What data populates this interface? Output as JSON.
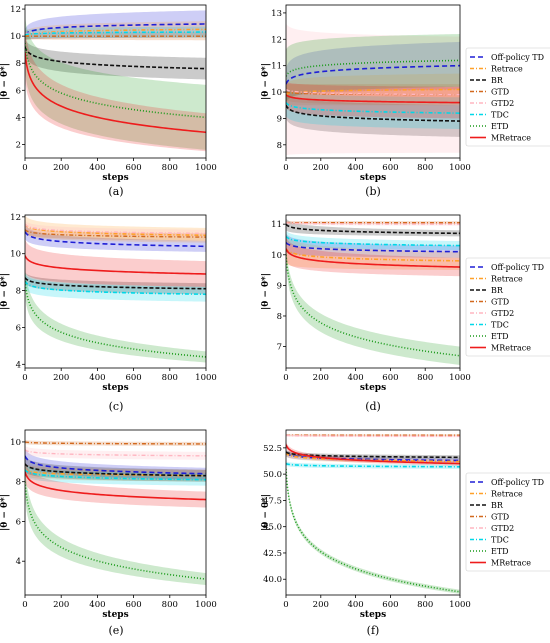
{
  "series_styles": [
    {
      "name": "Off-policy TD",
      "color": "#1f1fd6",
      "dash": "5,3",
      "width": 1.6,
      "marker": "none"
    },
    {
      "name": "Retrace",
      "color": "#ffa028",
      "dash": "4,2,1,2",
      "width": 1.6,
      "marker": "x"
    },
    {
      "name": "BR",
      "color": "#111111",
      "dash": "4,2",
      "width": 1.6,
      "marker": "dot"
    },
    {
      "name": "GTD",
      "color": "#d2691e",
      "dash": "4,2,1,2",
      "width": 1.4,
      "marker": "none"
    },
    {
      "name": "GTD2",
      "color": "#ffb6c1",
      "dash": "4,2,1,2",
      "width": 1.4,
      "marker": "dot"
    },
    {
      "name": "TDC",
      "color": "#00d8e8",
      "dash": "4,2,1,2",
      "width": 1.6,
      "marker": "none"
    },
    {
      "name": "ETD",
      "color": "#1a9a1a",
      "dash": "1,2",
      "width": 1.6,
      "marker": "none"
    },
    {
      "name": "MRetrace",
      "color": "#ee1c1c",
      "dash": "",
      "width": 1.6,
      "marker": "none"
    }
  ],
  "chart_data": [
    {
      "type": "line",
      "caption": "(a)",
      "xlabel": "steps",
      "ylabel": "|θ − θ*|",
      "xlim": [
        0,
        1000
      ],
      "ylim": [
        1,
        12.3
      ],
      "xticks": [
        0,
        200,
        400,
        600,
        800,
        1000
      ],
      "yticks": [
        2,
        4,
        6,
        8,
        10,
        12
      ],
      "legend": null,
      "series": [
        {
          "name": "Off-policy TD",
          "start": 10.1,
          "end": 10.9,
          "band_start": 0.4,
          "band_end": 1.0
        },
        {
          "name": "Retrace",
          "start": 10.0,
          "end": 10.5,
          "band_start": 0.3,
          "band_end": 0.6
        },
        {
          "name": "BR",
          "start": 9.2,
          "end": 7.6,
          "band_start": 0.6,
          "band_end": 0.8
        },
        {
          "name": "GTD",
          "start": 10.0,
          "end": 10.0,
          "band_start": 0.2,
          "band_end": 0.3
        },
        {
          "name": "GTD2",
          "start": 10.2,
          "end": 10.3,
          "band_start": 0.2,
          "band_end": 0.3
        },
        {
          "name": "TDC",
          "start": 10.1,
          "end": 10.3,
          "band_start": 0.3,
          "band_end": 0.4
        },
        {
          "name": "ETD",
          "start": 9.5,
          "end": 4.0,
          "band_start": 2.0,
          "band_end": 2.4
        },
        {
          "name": "MRetrace",
          "start": 8.8,
          "end": 2.9,
          "band_start": 2.0,
          "band_end": 1.4
        }
      ]
    },
    {
      "type": "line",
      "caption": "(b)",
      "xlabel": "steps",
      "ylabel": "|θ − θ*|",
      "xlim": [
        0,
        1000
      ],
      "ylim": [
        7.5,
        13.3
      ],
      "xticks": [
        0,
        200,
        400,
        600,
        800,
        1000
      ],
      "yticks": [
        8,
        9,
        10,
        11,
        12,
        13
      ],
      "legend": "right",
      "series": [
        {
          "name": "Off-policy TD",
          "start": 10.3,
          "end": 11.0,
          "band_start": 0.6,
          "band_end": 0.9
        },
        {
          "name": "Retrace",
          "start": 9.9,
          "end": 10.1,
          "band_start": 0.4,
          "band_end": 0.6
        },
        {
          "name": "BR",
          "start": 9.5,
          "end": 8.9,
          "band_start": 0.5,
          "band_end": 0.6
        },
        {
          "name": "GTD",
          "start": 10.0,
          "end": 9.9,
          "band_start": 0.3,
          "band_end": 0.4
        },
        {
          "name": "GTD2",
          "start": 10.1,
          "end": 9.9,
          "band_start": 2.5,
          "band_end": 2.2
        },
        {
          "name": "TDC",
          "start": 9.6,
          "end": 9.2,
          "band_start": 0.5,
          "band_end": 0.6
        },
        {
          "name": "ETD",
          "start": 10.6,
          "end": 11.2,
          "band_start": 1.0,
          "band_end": 1.0
        },
        {
          "name": "MRetrace",
          "start": 9.9,
          "end": 9.6,
          "band_start": 0.5,
          "band_end": 0.6
        }
      ]
    },
    {
      "type": "line",
      "caption": "(c)",
      "xlabel": "steps",
      "ylabel": "|θ − θ*|",
      "xlim": [
        0,
        1000
      ],
      "ylim": [
        3.8,
        12.1
      ],
      "xticks": [
        0,
        200,
        400,
        600,
        800,
        1000
      ],
      "yticks": [
        4,
        6,
        8,
        10,
        12
      ],
      "legend": null,
      "series": [
        {
          "name": "Off-policy TD",
          "start": 11.2,
          "end": 10.4,
          "band_start": 0.4,
          "band_end": 0.3
        },
        {
          "name": "Retrace",
          "start": 11.6,
          "end": 11.0,
          "band_start": 0.5,
          "band_end": 0.4
        },
        {
          "name": "BR",
          "start": 8.7,
          "end": 8.1,
          "band_start": 0.3,
          "band_end": 0.3
        },
        {
          "name": "GTD",
          "start": 11.3,
          "end": 10.9,
          "band_start": 0.2,
          "band_end": 0.2
        },
        {
          "name": "GTD2",
          "start": 11.6,
          "end": 11.1,
          "band_start": 0.2,
          "band_end": 0.2
        },
        {
          "name": "TDC",
          "start": 8.5,
          "end": 7.8,
          "band_start": 0.4,
          "band_end": 0.4
        },
        {
          "name": "ETD",
          "start": 8.5,
          "end": 4.4,
          "band_start": 0.8,
          "band_end": 0.3
        },
        {
          "name": "MRetrace",
          "start": 9.9,
          "end": 8.9,
          "band_start": 0.9,
          "band_end": 0.7
        }
      ]
    },
    {
      "type": "line",
      "caption": "(d)",
      "xlabel": "steps",
      "ylabel": "|θ − θ*|",
      "xlim": [
        0,
        1000
      ],
      "ylim": [
        6.3,
        11.3
      ],
      "xticks": [
        0,
        200,
        400,
        600,
        800,
        1000
      ],
      "yticks": [
        7,
        8,
        9,
        10,
        11
      ],
      "legend": "right",
      "series": [
        {
          "name": "Off-policy TD",
          "start": 10.4,
          "end": 10.1,
          "band_start": 0.3,
          "band_end": 0.2
        },
        {
          "name": "Retrace",
          "start": 10.2,
          "end": 9.8,
          "band_start": 0.5,
          "band_end": 0.3
        },
        {
          "name": "BR",
          "start": 11.0,
          "end": 10.7,
          "band_start": 0.2,
          "band_end": 0.1
        },
        {
          "name": "GTD",
          "start": 11.05,
          "end": 11.05,
          "band_start": 0.05,
          "band_end": 0.05
        },
        {
          "name": "GTD2",
          "start": 11.05,
          "end": 11.0,
          "band_start": 0.05,
          "band_end": 0.05
        },
        {
          "name": "TDC",
          "start": 10.6,
          "end": 10.3,
          "band_start": 0.2,
          "band_end": 0.15
        },
        {
          "name": "ETD",
          "start": 10.0,
          "end": 6.7,
          "band_start": 0.3,
          "band_end": 0.3
        },
        {
          "name": "MRetrace",
          "start": 10.2,
          "end": 9.6,
          "band_start": 0.4,
          "band_end": 0.3
        }
      ]
    },
    {
      "type": "line",
      "caption": "(e)",
      "xlabel": "steps",
      "ylabel": "|θ − θ*|",
      "xlim": [
        0,
        1000
      ],
      "ylim": [
        2.3,
        10.6
      ],
      "xticks": [
        0,
        200,
        400,
        600,
        800,
        1000
      ],
      "yticks": [
        4,
        6,
        8,
        10
      ],
      "legend": null,
      "series": [
        {
          "name": "Off-policy TD",
          "start": 9.3,
          "end": 8.4,
          "band_start": 0.4,
          "band_end": 0.3
        },
        {
          "name": "Retrace",
          "start": 8.6,
          "end": 8.3,
          "band_start": 0.3,
          "band_end": 0.3
        },
        {
          "name": "BR",
          "start": 8.9,
          "end": 8.3,
          "band_start": 0.4,
          "band_end": 0.3
        },
        {
          "name": "GTD",
          "start": 10.0,
          "end": 9.9,
          "band_start": 0.1,
          "band_end": 0.1
        },
        {
          "name": "GTD2",
          "start": 9.6,
          "end": 9.3,
          "band_start": 0.2,
          "band_end": 0.2
        },
        {
          "name": "TDC",
          "start": 8.6,
          "end": 8.1,
          "band_start": 0.3,
          "band_end": 0.3
        },
        {
          "name": "ETD",
          "start": 8.0,
          "end": 3.1,
          "band_start": 0.8,
          "band_end": 0.3
        },
        {
          "name": "MRetrace",
          "start": 8.5,
          "end": 7.1,
          "band_start": 0.5,
          "band_end": 0.4
        }
      ]
    },
    {
      "type": "line",
      "caption": "(f)",
      "xlabel": "steps",
      "ylabel": "|θ − θ*|",
      "xlim": [
        0,
        1000
      ],
      "ylim": [
        38.5,
        54.2
      ],
      "xticks": [
        0,
        200,
        400,
        600,
        800,
        1000
      ],
      "yticks": [
        40.0,
        42.5,
        45.0,
        47.5,
        50.0,
        52.5
      ],
      "legend": "right",
      "series": [
        {
          "name": "Off-policy TD",
          "start": 52.0,
          "end": 51.3,
          "band_start": 0.3,
          "band_end": 0.2
        },
        {
          "name": "Retrace",
          "start": 52.0,
          "end": 51.2,
          "band_start": 0.3,
          "band_end": 0.2
        },
        {
          "name": "BR",
          "start": 52.1,
          "end": 51.6,
          "band_start": 0.2,
          "band_end": 0.2
        },
        {
          "name": "GTD",
          "start": 53.7,
          "end": 53.7,
          "band_start": 0.1,
          "band_end": 0.1
        },
        {
          "name": "GTD2",
          "start": 53.7,
          "end": 53.6,
          "band_start": 0.1,
          "band_end": 0.1
        },
        {
          "name": "TDC",
          "start": 51.0,
          "end": 50.7,
          "band_start": 0.2,
          "band_end": 0.2
        },
        {
          "name": "ETD",
          "start": 50.5,
          "end": 38.8,
          "band_start": 0.3,
          "band_end": 0.2
        },
        {
          "name": "MRetrace",
          "start": 52.8,
          "end": 51.0,
          "band_start": 0.3,
          "band_end": 0.2
        }
      ]
    }
  ]
}
